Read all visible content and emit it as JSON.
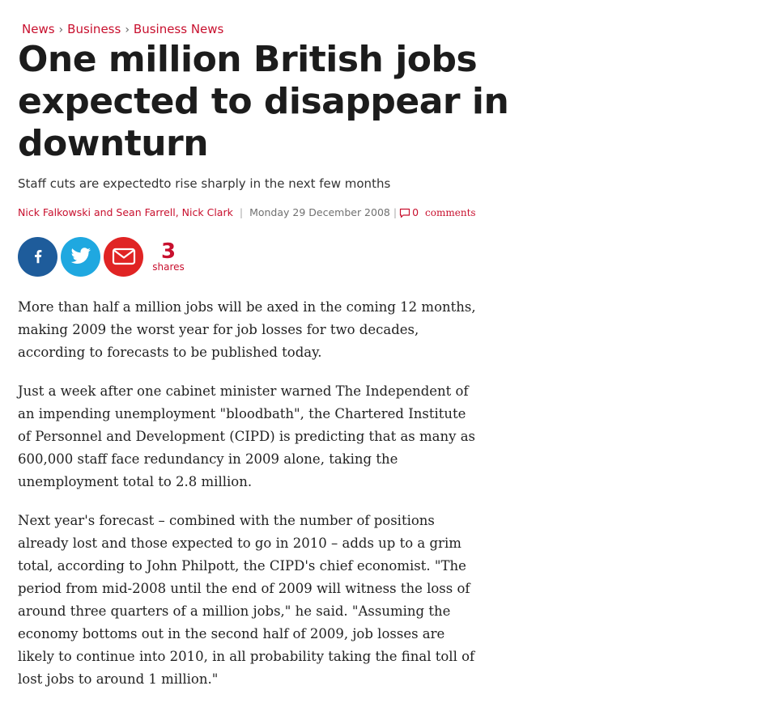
{
  "breadcrumb": {
    "items": [
      "News",
      "Business",
      "Business News"
    ],
    "separator": "›"
  },
  "headline": "One million British jobs expected to disappear in downturn",
  "standfirst": "Staff cuts are expectedto rise sharply in the next few months",
  "byline": {
    "authors": "Nick Falkowski and Sean Farrell, Nick Clark",
    "separator": "|",
    "date": "Monday 29 December 2008",
    "comments_count": "0",
    "comments_label": "comments"
  },
  "share": {
    "buttons": [
      {
        "network": "facebook",
        "icon": "facebook-icon",
        "color": "#1e5c9b"
      },
      {
        "network": "twitter",
        "icon": "twitter-icon",
        "color": "#1fa8e0"
      },
      {
        "network": "email",
        "icon": "email-icon",
        "color": "#e02424"
      }
    ],
    "count": "3",
    "count_label": "shares"
  },
  "body": {
    "paragraphs": [
      "More than half a million jobs will be axed in the coming 12 months, making 2009 the worst year for job losses for two decades, according to forecasts to be published today.",
      "Just a week after one cabinet minister warned The Independent of an impending unemployment \"bloodbath\", the Chartered Institute of Personnel and Development (CIPD) is predicting that as many as 600,000 staff face redundancy in 2009 alone, taking the unemployment total to 2.8 million.",
      "Next year's forecast – combined with the number of positions already lost and those expected to go in 2010 – adds up to a grim total, according to John Philpott, the CIPD's chief economist. \"The period from mid-2008 until the end of 2009 will witness the loss of around three quarters of a million jobs,\" he said. \"Assuming the economy bottoms out in the second half of 2009, job losses are likely to continue into 2010, in all probability taking the final toll of lost jobs to around 1 million.\""
    ]
  },
  "colors": {
    "accent": "#c8102e",
    "text": "#222222",
    "muted": "#707070"
  }
}
